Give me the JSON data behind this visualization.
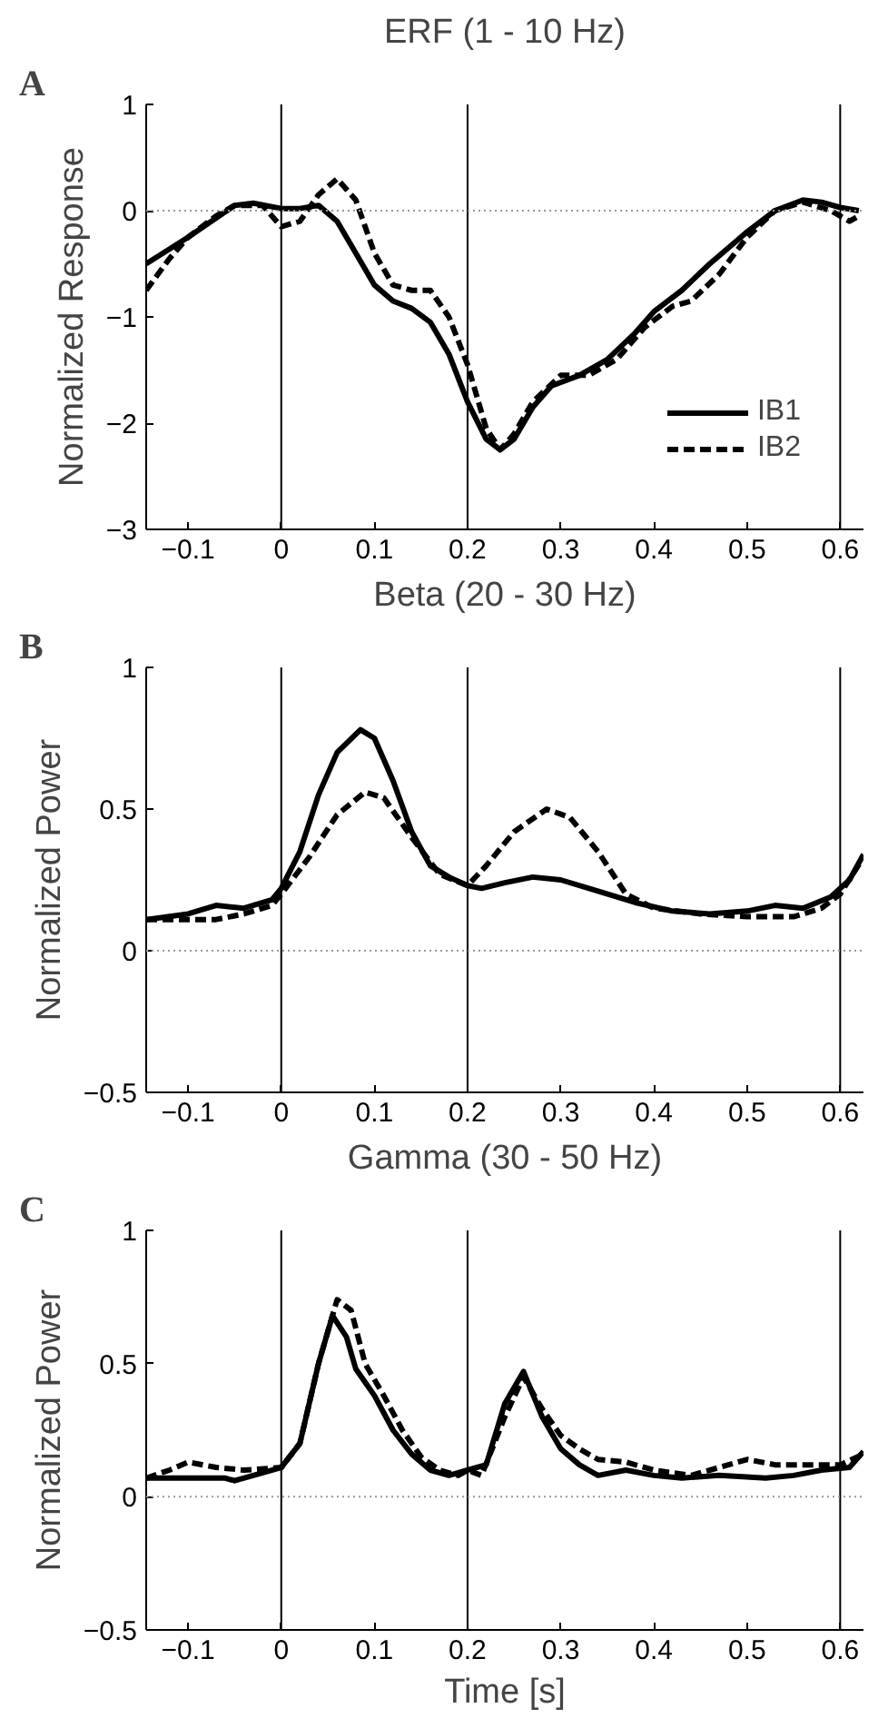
{
  "chart_data": [
    {
      "type": "line",
      "title": "ERF (1 - 10 Hz)",
      "ylabel": "Normalized Response",
      "annotations": [
        "A"
      ],
      "xlim": [
        -0.145,
        0.625
      ],
      "xticks": [
        -0.1,
        0,
        0.1,
        0.2,
        0.3,
        0.4,
        0.5,
        0.6
      ],
      "ylim": [
        -3,
        1
      ],
      "yticks": [
        -3,
        -2,
        -1,
        0,
        1
      ],
      "grid": false,
      "legend": "bottom right",
      "ref_lines": [
        {
          "axis": "x",
          "value": 0,
          "color": "#000000",
          "line_style": "solid"
        },
        {
          "axis": "x",
          "value": 0.2,
          "color": "#000000",
          "line_style": "solid"
        },
        {
          "axis": "x",
          "value": 0.6,
          "color": "#000000",
          "line_style": "solid"
        },
        {
          "axis": "y",
          "value": 0,
          "color": "#999999",
          "line_style": "dotted"
        }
      ],
      "series": [
        {
          "name": "IB1",
          "color": "#000000",
          "line_style": "solid",
          "x": [
            -0.145,
            -0.1,
            -0.05,
            -0.03,
            0,
            0.02,
            0.04,
            0.06,
            0.08,
            0.1,
            0.12,
            0.14,
            0.16,
            0.18,
            0.2,
            0.22,
            0.235,
            0.25,
            0.27,
            0.29,
            0.32,
            0.35,
            0.38,
            0.4,
            0.43,
            0.46,
            0.5,
            0.53,
            0.56,
            0.58,
            0.6,
            0.62
          ],
          "values": [
            -0.5,
            -0.25,
            0.05,
            0.07,
            0.02,
            0.02,
            0.05,
            -0.1,
            -0.4,
            -0.7,
            -0.85,
            -0.92,
            -1.05,
            -1.35,
            -1.8,
            -2.15,
            -2.25,
            -2.15,
            -1.85,
            -1.65,
            -1.55,
            -1.4,
            -1.15,
            -0.95,
            -0.75,
            -0.5,
            -0.2,
            0.0,
            0.1,
            0.08,
            0.03,
            0.0
          ]
        },
        {
          "name": "IB2",
          "color": "#000000",
          "line_style": "dashed",
          "x": [
            -0.145,
            -0.12,
            -0.1,
            -0.07,
            -0.05,
            -0.02,
            0,
            0.02,
            0.04,
            0.06,
            0.08,
            0.1,
            0.12,
            0.14,
            0.16,
            0.18,
            0.2,
            0.22,
            0.235,
            0.25,
            0.27,
            0.3,
            0.33,
            0.36,
            0.39,
            0.42,
            0.44,
            0.47,
            0.5,
            0.53,
            0.56,
            0.59,
            0.61,
            0.62
          ],
          "values": [
            -0.75,
            -0.45,
            -0.25,
            -0.05,
            0.05,
            0.05,
            -0.15,
            -0.1,
            0.15,
            0.3,
            0.1,
            -0.4,
            -0.7,
            -0.75,
            -0.75,
            -1.0,
            -1.45,
            -2.05,
            -2.25,
            -2.1,
            -1.8,
            -1.55,
            -1.55,
            -1.4,
            -1.1,
            -0.9,
            -0.85,
            -0.6,
            -0.25,
            0.0,
            0.08,
            0.0,
            -0.1,
            -0.05
          ]
        }
      ]
    },
    {
      "type": "line",
      "title": "Beta (20 - 30 Hz)",
      "ylabel": "Normalized Power",
      "annotations": [
        "B"
      ],
      "xlim": [
        -0.145,
        0.625
      ],
      "xticks": [
        -0.1,
        0,
        0.1,
        0.2,
        0.3,
        0.4,
        0.5,
        0.6
      ],
      "ylim": [
        -0.5,
        1
      ],
      "yticks": [
        -0.5,
        0,
        0.5,
        1
      ],
      "grid": false,
      "ref_lines": [
        {
          "axis": "x",
          "value": 0,
          "color": "#000000",
          "line_style": "solid"
        },
        {
          "axis": "x",
          "value": 0.2,
          "color": "#000000",
          "line_style": "solid"
        },
        {
          "axis": "x",
          "value": 0.6,
          "color": "#000000",
          "line_style": "solid"
        },
        {
          "axis": "y",
          "value": 0,
          "color": "#999999",
          "line_style": "dotted"
        }
      ],
      "series": [
        {
          "color": "#000000",
          "line_style": "solid",
          "x": [
            -0.145,
            -0.1,
            -0.07,
            -0.04,
            -0.01,
            0,
            0.02,
            0.04,
            0.06,
            0.085,
            0.1,
            0.12,
            0.14,
            0.16,
            0.18,
            0.2,
            0.215,
            0.24,
            0.27,
            0.3,
            0.34,
            0.38,
            0.42,
            0.46,
            0.5,
            0.53,
            0.56,
            0.59,
            0.61,
            0.625
          ],
          "values": [
            0.11,
            0.13,
            0.16,
            0.15,
            0.18,
            0.22,
            0.35,
            0.55,
            0.7,
            0.78,
            0.75,
            0.6,
            0.42,
            0.3,
            0.26,
            0.23,
            0.22,
            0.24,
            0.26,
            0.25,
            0.21,
            0.17,
            0.14,
            0.13,
            0.14,
            0.16,
            0.15,
            0.19,
            0.25,
            0.34
          ]
        },
        {
          "color": "#000000",
          "line_style": "dashed",
          "x": [
            -0.145,
            -0.1,
            -0.07,
            -0.04,
            -0.01,
            0,
            0.03,
            0.06,
            0.09,
            0.11,
            0.14,
            0.17,
            0.2,
            0.22,
            0.25,
            0.285,
            0.31,
            0.34,
            0.37,
            0.4,
            0.45,
            0.5,
            0.55,
            0.58,
            0.6,
            0.625
          ],
          "values": [
            0.11,
            0.11,
            0.11,
            0.13,
            0.16,
            0.2,
            0.33,
            0.48,
            0.56,
            0.54,
            0.4,
            0.27,
            0.23,
            0.3,
            0.42,
            0.5,
            0.47,
            0.35,
            0.2,
            0.15,
            0.13,
            0.12,
            0.12,
            0.15,
            0.2,
            0.33
          ]
        }
      ]
    },
    {
      "type": "line",
      "title": "Gamma (30 - 50 Hz)",
      "xlabel": "Time [s]",
      "ylabel": "Normalized Power",
      "annotations": [
        "C"
      ],
      "xlim": [
        -0.145,
        0.625
      ],
      "xticks": [
        -0.1,
        0,
        0.1,
        0.2,
        0.3,
        0.4,
        0.5,
        0.6
      ],
      "ylim": [
        -0.5,
        1
      ],
      "yticks": [
        -0.5,
        0,
        0.5,
        1
      ],
      "grid": false,
      "ref_lines": [
        {
          "axis": "x",
          "value": 0,
          "color": "#000000",
          "line_style": "solid"
        },
        {
          "axis": "x",
          "value": 0.2,
          "color": "#000000",
          "line_style": "solid"
        },
        {
          "axis": "x",
          "value": 0.6,
          "color": "#000000",
          "line_style": "solid"
        },
        {
          "axis": "y",
          "value": 0,
          "color": "#999999",
          "line_style": "dotted"
        }
      ],
      "series": [
        {
          "color": "#000000",
          "line_style": "solid",
          "x": [
            -0.145,
            -0.1,
            -0.06,
            -0.05,
            -0.03,
            0,
            0.02,
            0.04,
            0.055,
            0.07,
            0.08,
            0.1,
            0.12,
            0.14,
            0.16,
            0.18,
            0.2,
            0.22,
            0.24,
            0.26,
            0.28,
            0.3,
            0.32,
            0.34,
            0.37,
            0.4,
            0.43,
            0.47,
            0.52,
            0.55,
            0.58,
            0.61,
            0.625
          ],
          "values": [
            0.07,
            0.07,
            0.07,
            0.06,
            0.08,
            0.11,
            0.2,
            0.5,
            0.68,
            0.6,
            0.48,
            0.38,
            0.25,
            0.16,
            0.1,
            0.08,
            0.1,
            0.12,
            0.35,
            0.47,
            0.3,
            0.18,
            0.12,
            0.08,
            0.1,
            0.08,
            0.07,
            0.08,
            0.07,
            0.08,
            0.1,
            0.11,
            0.17
          ]
        },
        {
          "color": "#000000",
          "line_style": "dashed",
          "x": [
            -0.145,
            -0.12,
            -0.1,
            -0.07,
            -0.04,
            0,
            0.02,
            0.04,
            0.06,
            0.075,
            0.09,
            0.11,
            0.13,
            0.15,
            0.17,
            0.19,
            0.2,
            0.215,
            0.24,
            0.26,
            0.28,
            0.3,
            0.32,
            0.34,
            0.37,
            0.4,
            0.44,
            0.48,
            0.5,
            0.53,
            0.57,
            0.6,
            0.625
          ],
          "values": [
            0.07,
            0.1,
            0.13,
            0.11,
            0.1,
            0.11,
            0.2,
            0.5,
            0.74,
            0.7,
            0.5,
            0.38,
            0.25,
            0.15,
            0.1,
            0.08,
            0.1,
            0.08,
            0.3,
            0.45,
            0.33,
            0.23,
            0.18,
            0.14,
            0.13,
            0.1,
            0.08,
            0.12,
            0.14,
            0.12,
            0.12,
            0.12,
            0.16
          ]
        }
      ]
    }
  ]
}
